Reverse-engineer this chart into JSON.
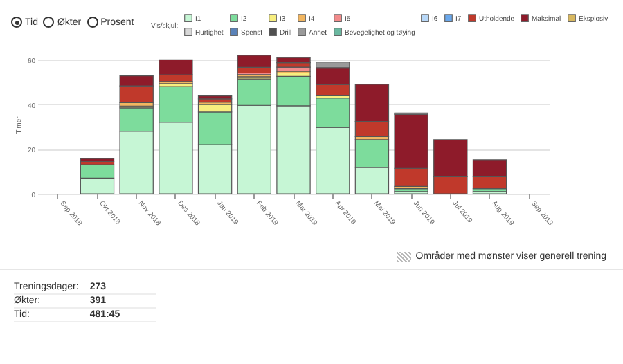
{
  "chart_data": {
    "type": "bar",
    "stacked": true,
    "ylabel": "Timer",
    "legend_title": "Vis/skjul:",
    "legend": "top",
    "grid": "y",
    "categories": [
      "Sep 2018",
      "Okt 2018",
      "Nov 2018",
      "Des 2018",
      "Jan 2019",
      "Feb 2019",
      "Mar 2019",
      "Apr 2019",
      "Mai 2019",
      "Jun 2019",
      "Jul 2019",
      "Aug 2019",
      "Sep 2019"
    ],
    "ylim": [
      0,
      62
    ],
    "yticks": [
      0,
      20,
      40,
      60
    ],
    "series": [
      {
        "name": "I1",
        "color": "#c6f6d5",
        "values": [
          null,
          7,
          28,
          32,
          22,
          39.6,
          39.4,
          29.7,
          11.8,
          1,
          null,
          1,
          null
        ]
      },
      {
        "name": "I2",
        "color": "#7ddc9c",
        "values": [
          null,
          6,
          10.5,
          16,
          14.6,
          11.8,
          13.2,
          13.2,
          12.4,
          1.3,
          null,
          1.3,
          null
        ]
      },
      {
        "name": "I3",
        "color": "#f7ee7f",
        "values": [
          null,
          null,
          0.8,
          1.3,
          3.4,
          1,
          1.5,
          1,
          null,
          null,
          null,
          null,
          null
        ]
      },
      {
        "name": "I4",
        "color": "#f2b660",
        "values": [
          null,
          null,
          1.5,
          1,
          1,
          1,
          0.8,
          null,
          1.4,
          1,
          null,
          null,
          null
        ]
      },
      {
        "name": "I5",
        "color": "#f28b8b",
        "values": [
          null,
          null,
          null,
          null,
          null,
          0.7,
          1.8,
          null,
          null,
          null,
          null,
          null,
          null
        ]
      },
      {
        "name": "I6",
        "color": "#b8d8f8",
        "values": [
          null,
          null,
          null,
          null,
          null,
          null,
          null,
          null,
          null,
          null,
          null,
          null,
          null
        ]
      },
      {
        "name": "I7",
        "color": "#6aa8ec",
        "values": [
          null,
          null,
          null,
          null,
          null,
          null,
          null,
          null,
          null,
          null,
          null,
          null,
          null
        ]
      },
      {
        "name": "Utholdende",
        "color": "#c0392b",
        "values": [
          null,
          1.5,
          7.5,
          3,
          1.5,
          2.5,
          2,
          5,
          6.8,
          8.1,
          7.6,
          5.3,
          null
        ]
      },
      {
        "name": "Maksimal",
        "color": "#8e1b2a",
        "values": [
          null,
          1.3,
          4.5,
          6.7,
          1.3,
          5.4,
          2.3,
          7.6,
          16.6,
          24.2,
          16.6,
          7.6,
          null
        ]
      },
      {
        "name": "Eksplosiv",
        "color": "#d8b860",
        "values": [
          null,
          null,
          null,
          null,
          null,
          null,
          null,
          null,
          null,
          null,
          null,
          null,
          null
        ]
      },
      {
        "name": "Hurtighet",
        "color": "#d8d8d8",
        "values": [
          null,
          null,
          null,
          null,
          null,
          null,
          null,
          null,
          null,
          null,
          null,
          null,
          null
        ]
      },
      {
        "name": "Spenst",
        "color": "#5a82b8",
        "values": [
          null,
          null,
          null,
          null,
          null,
          null,
          null,
          null,
          null,
          null,
          null,
          null,
          null
        ]
      },
      {
        "name": "Drill",
        "color": "#505050",
        "values": [
          null,
          null,
          null,
          null,
          null,
          null,
          null,
          null,
          null,
          null,
          null,
          null,
          null
        ]
      },
      {
        "name": "Annet",
        "color": "#9a9a9a",
        "values": [
          null,
          null,
          null,
          null,
          null,
          null,
          null,
          2.5,
          null,
          0.6,
          null,
          null,
          null
        ]
      },
      {
        "name": "Bevegelighet og tøying",
        "color": "#6ab8a0",
        "values": [
          null,
          null,
          null,
          null,
          null,
          null,
          null,
          null,
          null,
          null,
          null,
          null,
          null
        ]
      }
    ],
    "annotations": [
      "Tid",
      "Økter",
      "Prosent",
      "Områder med mønster viser generell trening",
      "Treningsdager:",
      "273",
      "Økter:",
      "391",
      "Tid:",
      "481:45"
    ]
  }
}
